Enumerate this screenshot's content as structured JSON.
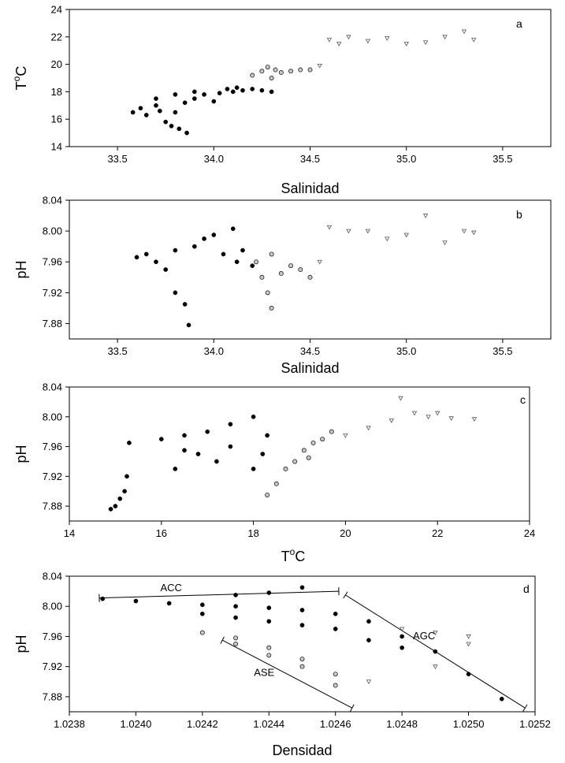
{
  "chart_data": [
    {
      "panel": "a",
      "type": "scatter",
      "xlabel": "Salinidad",
      "ylabel": "T",
      "ylabel_sup": "o",
      "ylabel_tail": "C",
      "xlim": [
        33.25,
        35.75
      ],
      "ylim": [
        14,
        24
      ],
      "xticks": [
        "33.5",
        "34.0",
        "34.5",
        "35.0",
        "35.5"
      ],
      "xtick_values": [
        33.5,
        34.0,
        34.5,
        35.0,
        35.5
      ],
      "yticks": [
        "14",
        "16",
        "18",
        "20",
        "22",
        "24"
      ],
      "ytick_values": [
        14,
        16,
        18,
        20,
        22,
        24
      ],
      "series": [
        {
          "marker": "filled-circle",
          "color": "#000000",
          "points": [
            [
              33.58,
              16.5
            ],
            [
              33.62,
              16.8
            ],
            [
              33.65,
              16.3
            ],
            [
              33.7,
              17.0
            ],
            [
              33.72,
              16.6
            ],
            [
              33.75,
              15.8
            ],
            [
              33.78,
              15.5
            ],
            [
              33.82,
              15.3
            ],
            [
              33.86,
              15.0
            ],
            [
              33.8,
              16.5
            ],
            [
              33.85,
              17.2
            ],
            [
              33.9,
              17.5
            ],
            [
              33.95,
              17.8
            ],
            [
              34.0,
              17.3
            ],
            [
              34.03,
              17.9
            ],
            [
              34.07,
              18.2
            ],
            [
              34.1,
              18.0
            ],
            [
              34.12,
              18.3
            ],
            [
              34.15,
              18.1
            ],
            [
              34.2,
              18.2
            ],
            [
              34.25,
              18.1
            ],
            [
              34.3,
              18.0
            ],
            [
              33.7,
              17.5
            ],
            [
              33.8,
              17.8
            ],
            [
              33.9,
              18.0
            ]
          ]
        },
        {
          "marker": "grey-circle",
          "color": "#b0b0b0",
          "points": [
            [
              34.2,
              19.2
            ],
            [
              34.25,
              19.5
            ],
            [
              34.28,
              19.8
            ],
            [
              34.3,
              19.0
            ],
            [
              34.32,
              19.6
            ],
            [
              34.35,
              19.4
            ],
            [
              34.4,
              19.5
            ],
            [
              34.45,
              19.6
            ],
            [
              34.5,
              19.6
            ]
          ]
        },
        {
          "marker": "triangle",
          "color": "#888888",
          "points": [
            [
              34.55,
              19.9
            ],
            [
              34.6,
              21.8
            ],
            [
              34.65,
              21.5
            ],
            [
              34.7,
              22.0
            ],
            [
              34.8,
              21.7
            ],
            [
              34.9,
              21.9
            ],
            [
              35.0,
              21.5
            ],
            [
              35.1,
              21.6
            ],
            [
              35.2,
              22.0
            ],
            [
              35.3,
              22.4
            ],
            [
              35.35,
              21.8
            ]
          ]
        }
      ]
    },
    {
      "panel": "b",
      "type": "scatter",
      "xlabel": "Salinidad",
      "ylabel": "pH",
      "xlim": [
        33.25,
        35.75
      ],
      "ylim": [
        7.86,
        8.04
      ],
      "xticks": [
        "33.5",
        "34.0",
        "34.5",
        "35.0",
        "35.5"
      ],
      "xtick_values": [
        33.5,
        34.0,
        34.5,
        35.0,
        35.5
      ],
      "yticks": [
        "7.88",
        "7.92",
        "7.96",
        "8.00",
        "8.04"
      ],
      "ytick_values": [
        7.88,
        7.92,
        7.96,
        8.0,
        8.04
      ],
      "series": [
        {
          "marker": "filled-circle",
          "color": "#000000",
          "points": [
            [
              33.6,
              7.966
            ],
            [
              33.65,
              7.97
            ],
            [
              33.7,
              7.96
            ],
            [
              33.75,
              7.95
            ],
            [
              33.8,
              7.92
            ],
            [
              33.85,
              7.905
            ],
            [
              33.87,
              7.878
            ],
            [
              33.8,
              7.975
            ],
            [
              33.9,
              7.98
            ],
            [
              33.95,
              7.99
            ],
            [
              34.0,
              7.995
            ],
            [
              34.05,
              7.97
            ],
            [
              34.1,
              8.003
            ],
            [
              34.12,
              7.96
            ],
            [
              34.15,
              7.975
            ],
            [
              34.2,
              7.955
            ]
          ]
        },
        {
          "marker": "grey-circle",
          "color": "#b0b0b0",
          "points": [
            [
              34.22,
              7.96
            ],
            [
              34.25,
              7.94
            ],
            [
              34.28,
              7.92
            ],
            [
              34.3,
              7.9
            ],
            [
              34.3,
              7.97
            ],
            [
              34.35,
              7.945
            ],
            [
              34.4,
              7.955
            ],
            [
              34.45,
              7.95
            ],
            [
              34.5,
              7.94
            ]
          ]
        },
        {
          "marker": "triangle",
          "color": "#888888",
          "points": [
            [
              34.55,
              7.96
            ],
            [
              34.6,
              8.005
            ],
            [
              34.7,
              8.0
            ],
            [
              34.8,
              8.0
            ],
            [
              34.9,
              7.99
            ],
            [
              35.0,
              7.995
            ],
            [
              35.1,
              8.02
            ],
            [
              35.2,
              7.985
            ],
            [
              35.3,
              8.0
            ],
            [
              35.35,
              7.998
            ]
          ]
        }
      ]
    },
    {
      "panel": "c",
      "type": "scatter",
      "xlabel": "T",
      "xlabel_sup": "o",
      "xlabel_tail": "C",
      "ylabel": "pH",
      "xlim": [
        14,
        24
      ],
      "ylim": [
        7.86,
        8.04
      ],
      "xticks": [
        "14",
        "16",
        "18",
        "20",
        "22",
        "24"
      ],
      "xtick_values": [
        14,
        16,
        18,
        20,
        22,
        24
      ],
      "yticks": [
        "7.88",
        "7.92",
        "7.96",
        "8.00",
        "8.04"
      ],
      "ytick_values": [
        7.88,
        7.92,
        7.96,
        8.0,
        8.04
      ],
      "series": [
        {
          "marker": "filled-circle",
          "color": "#000000",
          "points": [
            [
              14.9,
              7.876
            ],
            [
              15.0,
              7.88
            ],
            [
              15.1,
              7.89
            ],
            [
              15.2,
              7.9
            ],
            [
              15.25,
              7.92
            ],
            [
              15.3,
              7.965
            ],
            [
              16.0,
              7.97
            ],
            [
              16.5,
              7.975
            ],
            [
              17.0,
              7.98
            ],
            [
              17.5,
              7.99
            ],
            [
              18.0,
              8.0
            ],
            [
              16.3,
              7.93
            ],
            [
              16.8,
              7.95
            ],
            [
              17.5,
              7.96
            ],
            [
              18.0,
              7.93
            ],
            [
              18.2,
              7.95
            ],
            [
              18.3,
              7.975
            ],
            [
              16.5,
              7.955
            ],
            [
              17.2,
              7.94
            ]
          ]
        },
        {
          "marker": "grey-circle",
          "color": "#b0b0b0",
          "points": [
            [
              18.3,
              7.895
            ],
            [
              18.5,
              7.91
            ],
            [
              18.7,
              7.93
            ],
            [
              18.9,
              7.94
            ],
            [
              19.1,
              7.955
            ],
            [
              19.3,
              7.965
            ],
            [
              19.5,
              7.97
            ],
            [
              19.7,
              7.98
            ],
            [
              19.2,
              7.945
            ]
          ]
        },
        {
          "marker": "triangle",
          "color": "#888888",
          "points": [
            [
              20.0,
              7.975
            ],
            [
              20.5,
              7.985
            ],
            [
              21.0,
              7.995
            ],
            [
              21.2,
              8.025
            ],
            [
              21.5,
              8.005
            ],
            [
              21.8,
              8.0
            ],
            [
              22.0,
              8.005
            ],
            [
              22.3,
              7.998
            ],
            [
              22.8,
              7.997
            ]
          ]
        }
      ]
    },
    {
      "panel": "d",
      "type": "scatter",
      "xlabel": "Densidad",
      "ylabel": "pH",
      "xlim": [
        1.0238,
        1.0252
      ],
      "ylim": [
        7.86,
        8.04
      ],
      "xticks": [
        "1.0238",
        "1.0240",
        "1.0242",
        "1.0244",
        "1.0246",
        "1.0248",
        "1.0250",
        "1.0252"
      ],
      "xtick_values": [
        1.0238,
        1.024,
        1.0242,
        1.0244,
        1.0246,
        1.0248,
        1.025,
        1.0252
      ],
      "yticks": [
        "7.88",
        "7.92",
        "7.96",
        "8.00",
        "8.04"
      ],
      "ytick_values": [
        7.88,
        7.92,
        7.96,
        8.0,
        8.04
      ],
      "annotations": [
        {
          "label": "ACC",
          "x1": 1.02389,
          "y1": 8.011,
          "x2": 1.02461,
          "y2": 8.02
        },
        {
          "label": "AGC",
          "x1": 1.02463,
          "y1": 8.015,
          "x2": 1.02517,
          "y2": 7.865
        },
        {
          "label": "ASE",
          "x1": 1.02426,
          "y1": 7.955,
          "x2": 1.02465,
          "y2": 7.865
        }
      ],
      "series": [
        {
          "marker": "filled-circle",
          "color": "#000000",
          "points": [
            [
              1.0239,
              8.01
            ],
            [
              1.024,
              8.007
            ],
            [
              1.0241,
              8.004
            ],
            [
              1.0242,
              8.002
            ],
            [
              1.0243,
              8.0
            ],
            [
              1.0244,
              7.998
            ],
            [
              1.0245,
              7.995
            ],
            [
              1.0246,
              7.99
            ],
            [
              1.0247,
              7.98
            ],
            [
              1.0248,
              7.96
            ],
            [
              1.0249,
              7.94
            ],
            [
              1.025,
              7.91
            ],
            [
              1.0251,
              7.877
            ],
            [
              1.0243,
              8.015
            ],
            [
              1.0244,
              8.018
            ],
            [
              1.0245,
              8.025
            ],
            [
              1.0244,
              7.98
            ],
            [
              1.0245,
              7.975
            ],
            [
              1.0246,
              7.97
            ],
            [
              1.0247,
              7.955
            ],
            [
              1.0248,
              7.945
            ],
            [
              1.0242,
              7.99
            ],
            [
              1.0243,
              7.985
            ]
          ]
        },
        {
          "marker": "grey-circle",
          "color": "#b0b0b0",
          "points": [
            [
              1.0242,
              7.965
            ],
            [
              1.0243,
              7.958
            ],
            [
              1.0243,
              7.95
            ],
            [
              1.0244,
              7.945
            ],
            [
              1.0244,
              7.935
            ],
            [
              1.0245,
              7.93
            ],
            [
              1.0245,
              7.92
            ],
            [
              1.0246,
              7.91
            ],
            [
              1.0246,
              7.895
            ]
          ]
        },
        {
          "marker": "triangle",
          "color": "#888888",
          "points": [
            [
              1.0247,
              7.9
            ],
            [
              1.0248,
              7.97
            ],
            [
              1.0249,
              7.965
            ],
            [
              1.0249,
              7.92
            ],
            [
              1.025,
              7.95
            ],
            [
              1.025,
              7.96
            ]
          ]
        }
      ]
    }
  ]
}
